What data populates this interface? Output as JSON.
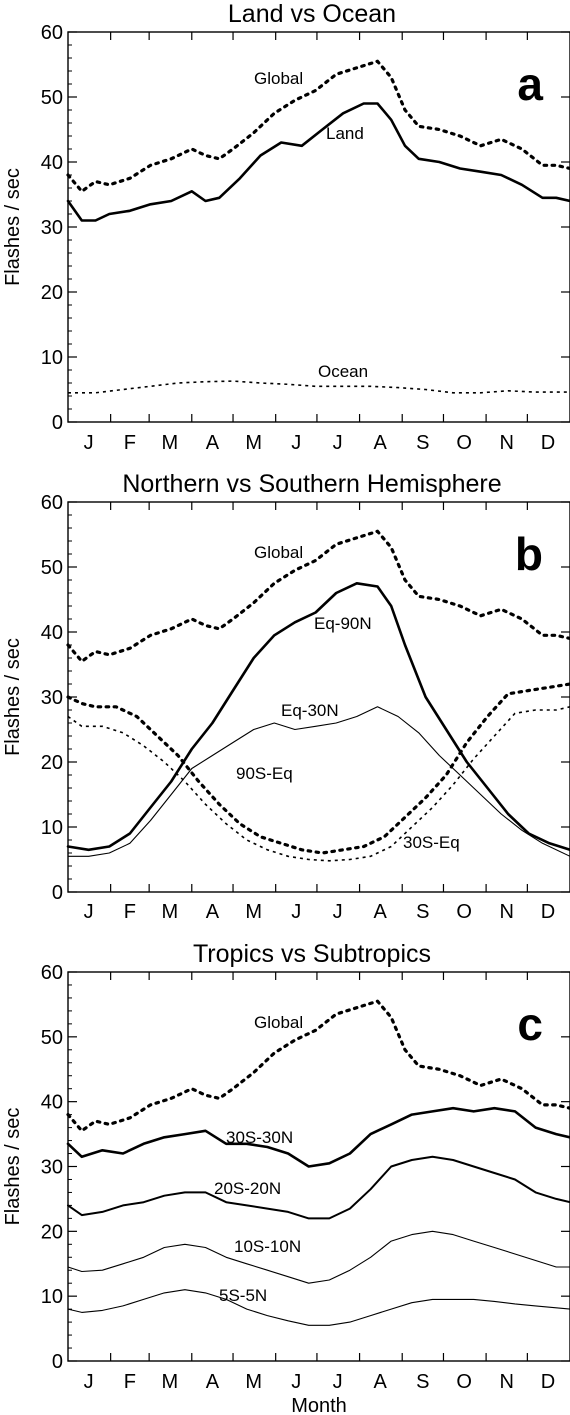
{
  "chart_data": [
    {
      "type": "line",
      "title": "Land vs Ocean",
      "panel_label": "a",
      "xlabel": "",
      "ylabel": "Flashes / sec",
      "ylim": [
        0,
        60
      ],
      "yticks": [
        0,
        10,
        20,
        30,
        40,
        50,
        60
      ],
      "xlim": [
        0,
        365
      ],
      "xticks": [
        {
          "label": "J",
          "x": 15
        },
        {
          "label": "F",
          "x": 45
        },
        {
          "label": "M",
          "x": 74
        },
        {
          "label": "A",
          "x": 105
        },
        {
          "label": "M",
          "x": 135
        },
        {
          "label": "J",
          "x": 166
        },
        {
          "label": "J",
          "x": 196
        },
        {
          "label": "A",
          "x": 227
        },
        {
          "label": "S",
          "x": 258
        },
        {
          "label": "O",
          "x": 288
        },
        {
          "label": "N",
          "x": 319
        },
        {
          "label": "D",
          "x": 349
        }
      ],
      "series": [
        {
          "name": "Global",
          "style": "dotted-thick",
          "x": [
            0,
            10,
            20,
            30,
            45,
            60,
            75,
            90,
            100,
            110,
            120,
            135,
            150,
            165,
            180,
            195,
            210,
            225,
            235,
            245,
            255,
            270,
            285,
            300,
            315,
            330,
            345,
            355,
            365
          ],
          "y": [
            38,
            35.5,
            37,
            36.5,
            37.5,
            39.5,
            40.5,
            42,
            41,
            40.5,
            42,
            44.5,
            47.5,
            49.5,
            51,
            53.5,
            54.5,
            55.5,
            53,
            48,
            45.5,
            45,
            44,
            42.5,
            43.5,
            42,
            39.5,
            39.5,
            39
          ]
        },
        {
          "name": "Land",
          "style": "solid-thick",
          "x": [
            0,
            10,
            20,
            30,
            45,
            60,
            75,
            90,
            100,
            110,
            125,
            140,
            155,
            170,
            185,
            200,
            215,
            225,
            235,
            245,
            255,
            270,
            285,
            300,
            315,
            330,
            345,
            355,
            365
          ],
          "y": [
            34,
            31,
            31,
            32,
            32.5,
            33.5,
            34,
            35.5,
            34,
            34.5,
            37.5,
            41,
            43,
            42.5,
            45,
            47.5,
            49,
            49,
            46.5,
            42.5,
            40.5,
            40,
            39,
            38.5,
            38,
            36.5,
            34.5,
            34.5,
            34
          ]
        },
        {
          "name": "Ocean",
          "style": "dotted-thin",
          "x": [
            0,
            20,
            40,
            60,
            80,
            100,
            120,
            140,
            160,
            180,
            200,
            220,
            240,
            260,
            280,
            300,
            320,
            340,
            365
          ],
          "y": [
            4.5,
            4.5,
            5,
            5.5,
            6,
            6.2,
            6.3,
            6,
            5.8,
            5.5,
            5.5,
            5.5,
            5.3,
            5,
            4.5,
            4.5,
            4.8,
            4.6,
            4.6
          ]
        }
      ]
    },
    {
      "type": "line",
      "title": "Northern vs Southern Hemisphere",
      "panel_label": "b",
      "xlabel": "",
      "ylabel": "Flashes / sec",
      "ylim": [
        0,
        60
      ],
      "yticks": [
        0,
        10,
        20,
        30,
        40,
        50,
        60
      ],
      "xlim": [
        0,
        365
      ],
      "xticks": [
        {
          "label": "J",
          "x": 15
        },
        {
          "label": "F",
          "x": 45
        },
        {
          "label": "M",
          "x": 74
        },
        {
          "label": "A",
          "x": 105
        },
        {
          "label": "M",
          "x": 135
        },
        {
          "label": "J",
          "x": 166
        },
        {
          "label": "J",
          "x": 196
        },
        {
          "label": "A",
          "x": 227
        },
        {
          "label": "S",
          "x": 258
        },
        {
          "label": "O",
          "x": 288
        },
        {
          "label": "N",
          "x": 319
        },
        {
          "label": "D",
          "x": 349
        }
      ],
      "series": [
        {
          "name": "Global",
          "style": "dotted-thick",
          "x": [
            0,
            10,
            20,
            30,
            45,
            60,
            75,
            90,
            100,
            110,
            120,
            135,
            150,
            165,
            180,
            195,
            210,
            225,
            235,
            245,
            255,
            270,
            285,
            300,
            315,
            330,
            345,
            355,
            365
          ],
          "y": [
            38,
            35.5,
            37,
            36.5,
            37.5,
            39.5,
            40.5,
            42,
            41,
            40.5,
            42,
            44.5,
            47.5,
            49.5,
            51,
            53.5,
            54.5,
            55.5,
            53,
            48,
            45.5,
            45,
            44,
            42.5,
            43.5,
            42,
            39.5,
            39.5,
            39
          ]
        },
        {
          "name": "Eq-90N",
          "style": "solid-thick",
          "x": [
            0,
            15,
            30,
            45,
            60,
            75,
            90,
            105,
            120,
            135,
            150,
            165,
            180,
            195,
            210,
            225,
            235,
            245,
            260,
            275,
            290,
            305,
            320,
            335,
            350,
            365
          ],
          "y": [
            7,
            6.5,
            7,
            9,
            13,
            17,
            22,
            26,
            31,
            36,
            39.5,
            41.5,
            43,
            46,
            47.5,
            47,
            44,
            38,
            30,
            25,
            20,
            16,
            12,
            9,
            7.5,
            6.5
          ]
        },
        {
          "name": "Eq-30N",
          "style": "solid-thin",
          "x": [
            0,
            15,
            30,
            45,
            60,
            75,
            90,
            105,
            120,
            135,
            150,
            165,
            180,
            195,
            210,
            225,
            240,
            255,
            270,
            285,
            300,
            315,
            330,
            345,
            365
          ],
          "y": [
            5.5,
            5.5,
            6,
            7.5,
            11,
            15,
            19,
            21,
            23,
            25,
            26,
            25,
            25.5,
            26,
            27,
            28.5,
            27,
            24.5,
            21,
            18,
            15,
            12,
            9.5,
            7.5,
            5.5
          ]
        },
        {
          "name": "90S-Eq",
          "style": "dotted-thick",
          "x": [
            0,
            10,
            20,
            35,
            50,
            65,
            80,
            95,
            110,
            125,
            140,
            155,
            170,
            185,
            200,
            215,
            230,
            245,
            260,
            275,
            290,
            305,
            320,
            335,
            350,
            365
          ],
          "y": [
            30,
            29,
            28.5,
            28.5,
            27,
            24,
            21,
            17,
            13.5,
            10.5,
            8.5,
            7.5,
            6.5,
            6,
            6.5,
            7,
            8.5,
            11.5,
            14.5,
            18,
            23,
            27,
            30.5,
            31,
            31.5,
            32
          ]
        },
        {
          "name": "30S-Eq",
          "style": "dotted-thin",
          "x": [
            0,
            10,
            25,
            40,
            55,
            70,
            85,
            100,
            115,
            130,
            145,
            160,
            175,
            190,
            205,
            220,
            235,
            250,
            265,
            280,
            295,
            310,
            325,
            340,
            355,
            365
          ],
          "y": [
            27,
            25.5,
            25.5,
            24.5,
            22.5,
            20,
            17,
            13.5,
            10.5,
            8,
            6.5,
            5.5,
            5,
            4.8,
            5,
            5.5,
            7,
            10,
            13,
            16.5,
            20.5,
            24,
            27.5,
            28,
            28,
            28.5
          ]
        }
      ]
    },
    {
      "type": "line",
      "title": "Tropics vs Subtropics",
      "panel_label": "c",
      "xlabel": "Month",
      "ylabel": "Flashes / sec",
      "ylim": [
        0,
        60
      ],
      "yticks": [
        0,
        10,
        20,
        30,
        40,
        50,
        60
      ],
      "xlim": [
        0,
        365
      ],
      "xticks": [
        {
          "label": "J",
          "x": 15
        },
        {
          "label": "F",
          "x": 45
        },
        {
          "label": "M",
          "x": 74
        },
        {
          "label": "A",
          "x": 105
        },
        {
          "label": "M",
          "x": 135
        },
        {
          "label": "J",
          "x": 166
        },
        {
          "label": "J",
          "x": 196
        },
        {
          "label": "A",
          "x": 227
        },
        {
          "label": "S",
          "x": 258
        },
        {
          "label": "O",
          "x": 288
        },
        {
          "label": "N",
          "x": 319
        },
        {
          "label": "D",
          "x": 349
        }
      ],
      "series": [
        {
          "name": "Global",
          "style": "dotted-thick",
          "x": [
            0,
            10,
            20,
            30,
            45,
            60,
            75,
            90,
            100,
            110,
            120,
            135,
            150,
            165,
            180,
            195,
            210,
            225,
            235,
            245,
            255,
            270,
            285,
            300,
            315,
            330,
            345,
            355,
            365
          ],
          "y": [
            38,
            35.5,
            37,
            36.5,
            37.5,
            39.5,
            40.5,
            42,
            41,
            40.5,
            42,
            44.5,
            47.5,
            49.5,
            51,
            53.5,
            54.5,
            55.5,
            53,
            48,
            45.5,
            45,
            44,
            42.5,
            43.5,
            42,
            39.5,
            39.5,
            39
          ]
        },
        {
          "name": "30S-30N",
          "style": "solid-thick",
          "x": [
            0,
            10,
            25,
            40,
            55,
            70,
            85,
            100,
            115,
            130,
            145,
            160,
            175,
            190,
            205,
            220,
            235,
            250,
            265,
            280,
            295,
            310,
            325,
            340,
            355,
            365
          ],
          "y": [
            33.5,
            31.5,
            32.5,
            32,
            33.5,
            34.5,
            35,
            35.5,
            33.5,
            33.5,
            33,
            32,
            30,
            30.5,
            32,
            35,
            36.5,
            38,
            38.5,
            39,
            38.5,
            39,
            38.5,
            36,
            35,
            34.5
          ]
        },
        {
          "name": "20S-20N",
          "style": "solid-medium",
          "x": [
            0,
            10,
            25,
            40,
            55,
            70,
            85,
            100,
            115,
            130,
            145,
            160,
            175,
            190,
            205,
            220,
            235,
            250,
            265,
            280,
            295,
            310,
            325,
            340,
            355,
            365
          ],
          "y": [
            24,
            22.5,
            23,
            24,
            24.5,
            25.5,
            26,
            26,
            24.5,
            24,
            23.5,
            23,
            22,
            22,
            23.5,
            26.5,
            30,
            31,
            31.5,
            31,
            30,
            29,
            28,
            26,
            25,
            24.5
          ]
        },
        {
          "name": "10S-10N",
          "style": "solid-thin",
          "x": [
            0,
            10,
            25,
            40,
            55,
            70,
            85,
            100,
            115,
            130,
            145,
            160,
            175,
            190,
            205,
            220,
            235,
            250,
            265,
            280,
            295,
            310,
            325,
            340,
            355,
            365
          ],
          "y": [
            14.5,
            13.8,
            14,
            15,
            16,
            17.5,
            18,
            17.5,
            16,
            15,
            14,
            13,
            12,
            12.5,
            14,
            16,
            18.5,
            19.5,
            20,
            19.5,
            18.5,
            17.5,
            16.5,
            15.5,
            14.5,
            14.5
          ]
        },
        {
          "name": "5S-5N",
          "style": "solid-thin",
          "x": [
            0,
            10,
            25,
            40,
            55,
            70,
            85,
            100,
            115,
            130,
            145,
            160,
            175,
            190,
            205,
            220,
            235,
            250,
            265,
            280,
            295,
            310,
            325,
            340,
            355,
            365
          ],
          "y": [
            8,
            7.5,
            7.8,
            8.5,
            9.5,
            10.5,
            11,
            10.5,
            9.5,
            8,
            7,
            6.2,
            5.5,
            5.5,
            6,
            7,
            8,
            9,
            9.5,
            9.5,
            9.5,
            9.2,
            8.8,
            8.5,
            8.2,
            8
          ]
        }
      ]
    }
  ]
}
